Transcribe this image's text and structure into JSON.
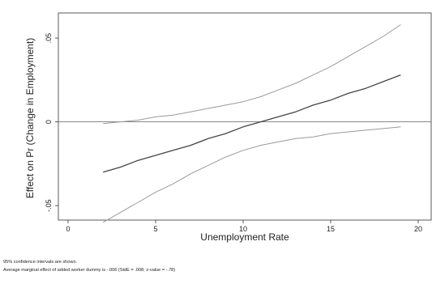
{
  "chart_data": {
    "type": "line",
    "title": "",
    "xlabel": "Unemployment Rate",
    "ylabel": "Effect on Pr (Change in Employment)",
    "xlim": [
      0,
      20
    ],
    "ylim": [
      -0.0625,
      0.065
    ],
    "xticks": [
      0,
      5,
      10,
      15,
      20
    ],
    "xtick_labels": [
      "0",
      "5",
      "10",
      "15",
      "20"
    ],
    "yticks": [
      -0.05,
      0,
      0.05
    ],
    "ytick_labels": [
      "-.05",
      "0",
      ".05"
    ],
    "reference_line_y": 0,
    "grid": false,
    "legend": "none",
    "colors": {
      "estimate": "#444444",
      "bounds": "#9a9a9a",
      "reference": "#777777",
      "frame": "#333333"
    },
    "x": [
      2,
      3,
      4,
      5,
      6,
      7,
      8,
      9,
      10,
      11,
      12,
      13,
      14,
      15,
      16,
      17,
      18,
      19
    ],
    "series": [
      {
        "role": "upper",
        "values": [
          -0.001,
          0.0,
          0.001,
          0.003,
          0.004,
          0.006,
          0.008,
          0.01,
          0.012,
          0.015,
          0.019,
          0.023,
          0.028,
          0.033,
          0.039,
          0.045,
          0.051,
          0.058
        ]
      },
      {
        "role": "estimate",
        "values": [
          -0.03,
          -0.027,
          -0.023,
          -0.02,
          -0.017,
          -0.014,
          -0.01,
          -0.007,
          -0.003,
          0.0,
          0.003,
          0.006,
          0.01,
          0.013,
          0.017,
          0.02,
          0.024,
          0.028
        ]
      },
      {
        "role": "lower",
        "values": [
          -0.06,
          -0.054,
          -0.048,
          -0.042,
          -0.037,
          -0.031,
          -0.026,
          -0.021,
          -0.017,
          -0.014,
          -0.012,
          -0.01,
          -0.009,
          -0.007,
          -0.006,
          -0.005,
          -0.004,
          -0.003
        ]
      }
    ]
  },
  "notes": [
    "95% confidence intervals are shown.",
    "Average marginal effect of added worker dummy is -.006 (StdE = .008; z-value = -.78)"
  ]
}
